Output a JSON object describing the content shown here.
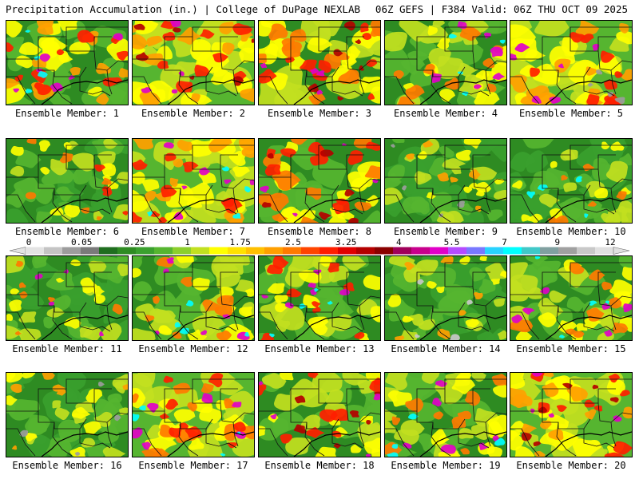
{
  "header": {
    "title": "Precipitation Accumulation (in.) | College of DuPage NEXLAB",
    "run_info": "06Z GEFS | F384 Valid: 06Z THU OCT 09 2025"
  },
  "colorbar": {
    "tick_labels": [
      "0",
      "0.05",
      "0.25",
      "1",
      "1.75",
      "2.5",
      "3.25",
      "4",
      "5.5",
      "7",
      "9",
      "12"
    ],
    "colors": [
      "#e3e3e3",
      "#c4c4c4",
      "#9c9c9c",
      "#7a7a7a",
      "#1f6e1f",
      "#2e8b22",
      "#3aa02e",
      "#56b530",
      "#8ccf2c",
      "#c2e020",
      "#ffff00",
      "#ffe100",
      "#ffc000",
      "#ff9f00",
      "#ff7a00",
      "#ff4500",
      "#ff1e00",
      "#e00000",
      "#b40000",
      "#8a0000",
      "#a0005a",
      "#c8008c",
      "#e100c8",
      "#b44bff",
      "#7878ff",
      "#28d2ff",
      "#00ffff",
      "#40c8c8",
      "#80a0a0",
      "#a0a0a0",
      "#c8c8c8",
      "#e0e0e0"
    ]
  },
  "members": [
    {
      "label": "Ensemble Member: 1",
      "pal": [
        "#2e8b22",
        "#56b530",
        "#ffff00",
        "#ff9f00",
        "#ff1e00",
        "#e100c8",
        "#00ffff"
      ]
    },
    {
      "label": "Ensemble Member: 2",
      "pal": [
        "#56b530",
        "#c2e020",
        "#ffff00",
        "#ff9f00",
        "#ff1e00",
        "#b40000",
        "#e100c8"
      ]
    },
    {
      "label": "Ensemble Member: 3",
      "pal": [
        "#2e8b22",
        "#c2e020",
        "#ffff00",
        "#ff7a00",
        "#ff1e00",
        "#b40000",
        "#e100c8"
      ]
    },
    {
      "label": "Ensemble Member: 4",
      "pal": [
        "#2e8b22",
        "#56b530",
        "#c2e020",
        "#ffff00",
        "#ff7a00",
        "#e100c8",
        "#00ffff"
      ]
    },
    {
      "label": "Ensemble Member: 5",
      "pal": [
        "#56b530",
        "#c2e020",
        "#ffff00",
        "#ff9f00",
        "#ff1e00",
        "#e100c8",
        "#9c9c9c"
      ]
    },
    {
      "label": "Ensemble Member: 6",
      "pal": [
        "#2e8b22",
        "#3aa02e",
        "#56b530",
        "#c2e020",
        "#ffff00",
        "#ff7a00",
        "#ff1e00"
      ]
    },
    {
      "label": "Ensemble Member: 7",
      "pal": [
        "#56b530",
        "#c2e020",
        "#ffff00",
        "#ff9f00",
        "#ff1e00",
        "#e100c8",
        "#00ffff"
      ]
    },
    {
      "label": "Ensemble Member: 8",
      "pal": [
        "#2e8b22",
        "#56b530",
        "#ffff00",
        "#ff7a00",
        "#ff1e00",
        "#b40000",
        "#e100c8"
      ]
    },
    {
      "label": "Ensemble Member: 9",
      "pal": [
        "#2e8b22",
        "#3aa02e",
        "#56b530",
        "#c2e020",
        "#ffff00",
        "#ff9f00",
        "#9c9c9c"
      ]
    },
    {
      "label": "Ensemble Member: 10",
      "pal": [
        "#2e8b22",
        "#3aa02e",
        "#56b530",
        "#c2e020",
        "#ffff00",
        "#ff7a00",
        "#00ffff"
      ]
    },
    {
      "label": "Ensemble Member: 11",
      "pal": [
        "#2e8b22",
        "#3aa02e",
        "#56b530",
        "#c2e020",
        "#ffff00",
        "#ff7a00",
        "#e100c8"
      ]
    },
    {
      "label": "Ensemble Member: 12",
      "pal": [
        "#2e8b22",
        "#56b530",
        "#c2e020",
        "#ffff00",
        "#ff7a00",
        "#e100c8",
        "#00ffff"
      ]
    },
    {
      "label": "Ensemble Member: 13",
      "pal": [
        "#2e8b22",
        "#56b530",
        "#c2e020",
        "#ffff00",
        "#ff1e00",
        "#e100c8",
        "#00ffff"
      ]
    },
    {
      "label": "Ensemble Member: 14",
      "pal": [
        "#2e8b22",
        "#3aa02e",
        "#56b530",
        "#c2e020",
        "#ffff00",
        "#ff9f00",
        "#c8c8c8"
      ]
    },
    {
      "label": "Ensemble Member: 15",
      "pal": [
        "#2e8b22",
        "#56b530",
        "#c2e020",
        "#ffff00",
        "#ff7a00",
        "#e100c8",
        "#00ffff"
      ]
    },
    {
      "label": "Ensemble Member: 16",
      "pal": [
        "#2e8b22",
        "#3aa02e",
        "#56b530",
        "#c2e020",
        "#ffff00",
        "#ff9f00",
        "#9c9c9c"
      ]
    },
    {
      "label": "Ensemble Member: 17",
      "pal": [
        "#56b530",
        "#c2e020",
        "#ffff00",
        "#ff7a00",
        "#ff1e00",
        "#e100c8",
        "#00ffff"
      ]
    },
    {
      "label": "Ensemble Member: 18",
      "pal": [
        "#2e8b22",
        "#56b530",
        "#c2e020",
        "#ffff00",
        "#ff1e00",
        "#b40000",
        "#e100c8"
      ]
    },
    {
      "label": "Ensemble Member: 19",
      "pal": [
        "#2e8b22",
        "#56b530",
        "#c2e020",
        "#ffff00",
        "#ff7a00",
        "#e100c8",
        "#00ffff"
      ]
    },
    {
      "label": "Ensemble Member: 20",
      "pal": [
        "#56b530",
        "#c2e020",
        "#ffff00",
        "#ff9f00",
        "#ff1e00",
        "#b40000",
        "#e100c8"
      ]
    }
  ]
}
